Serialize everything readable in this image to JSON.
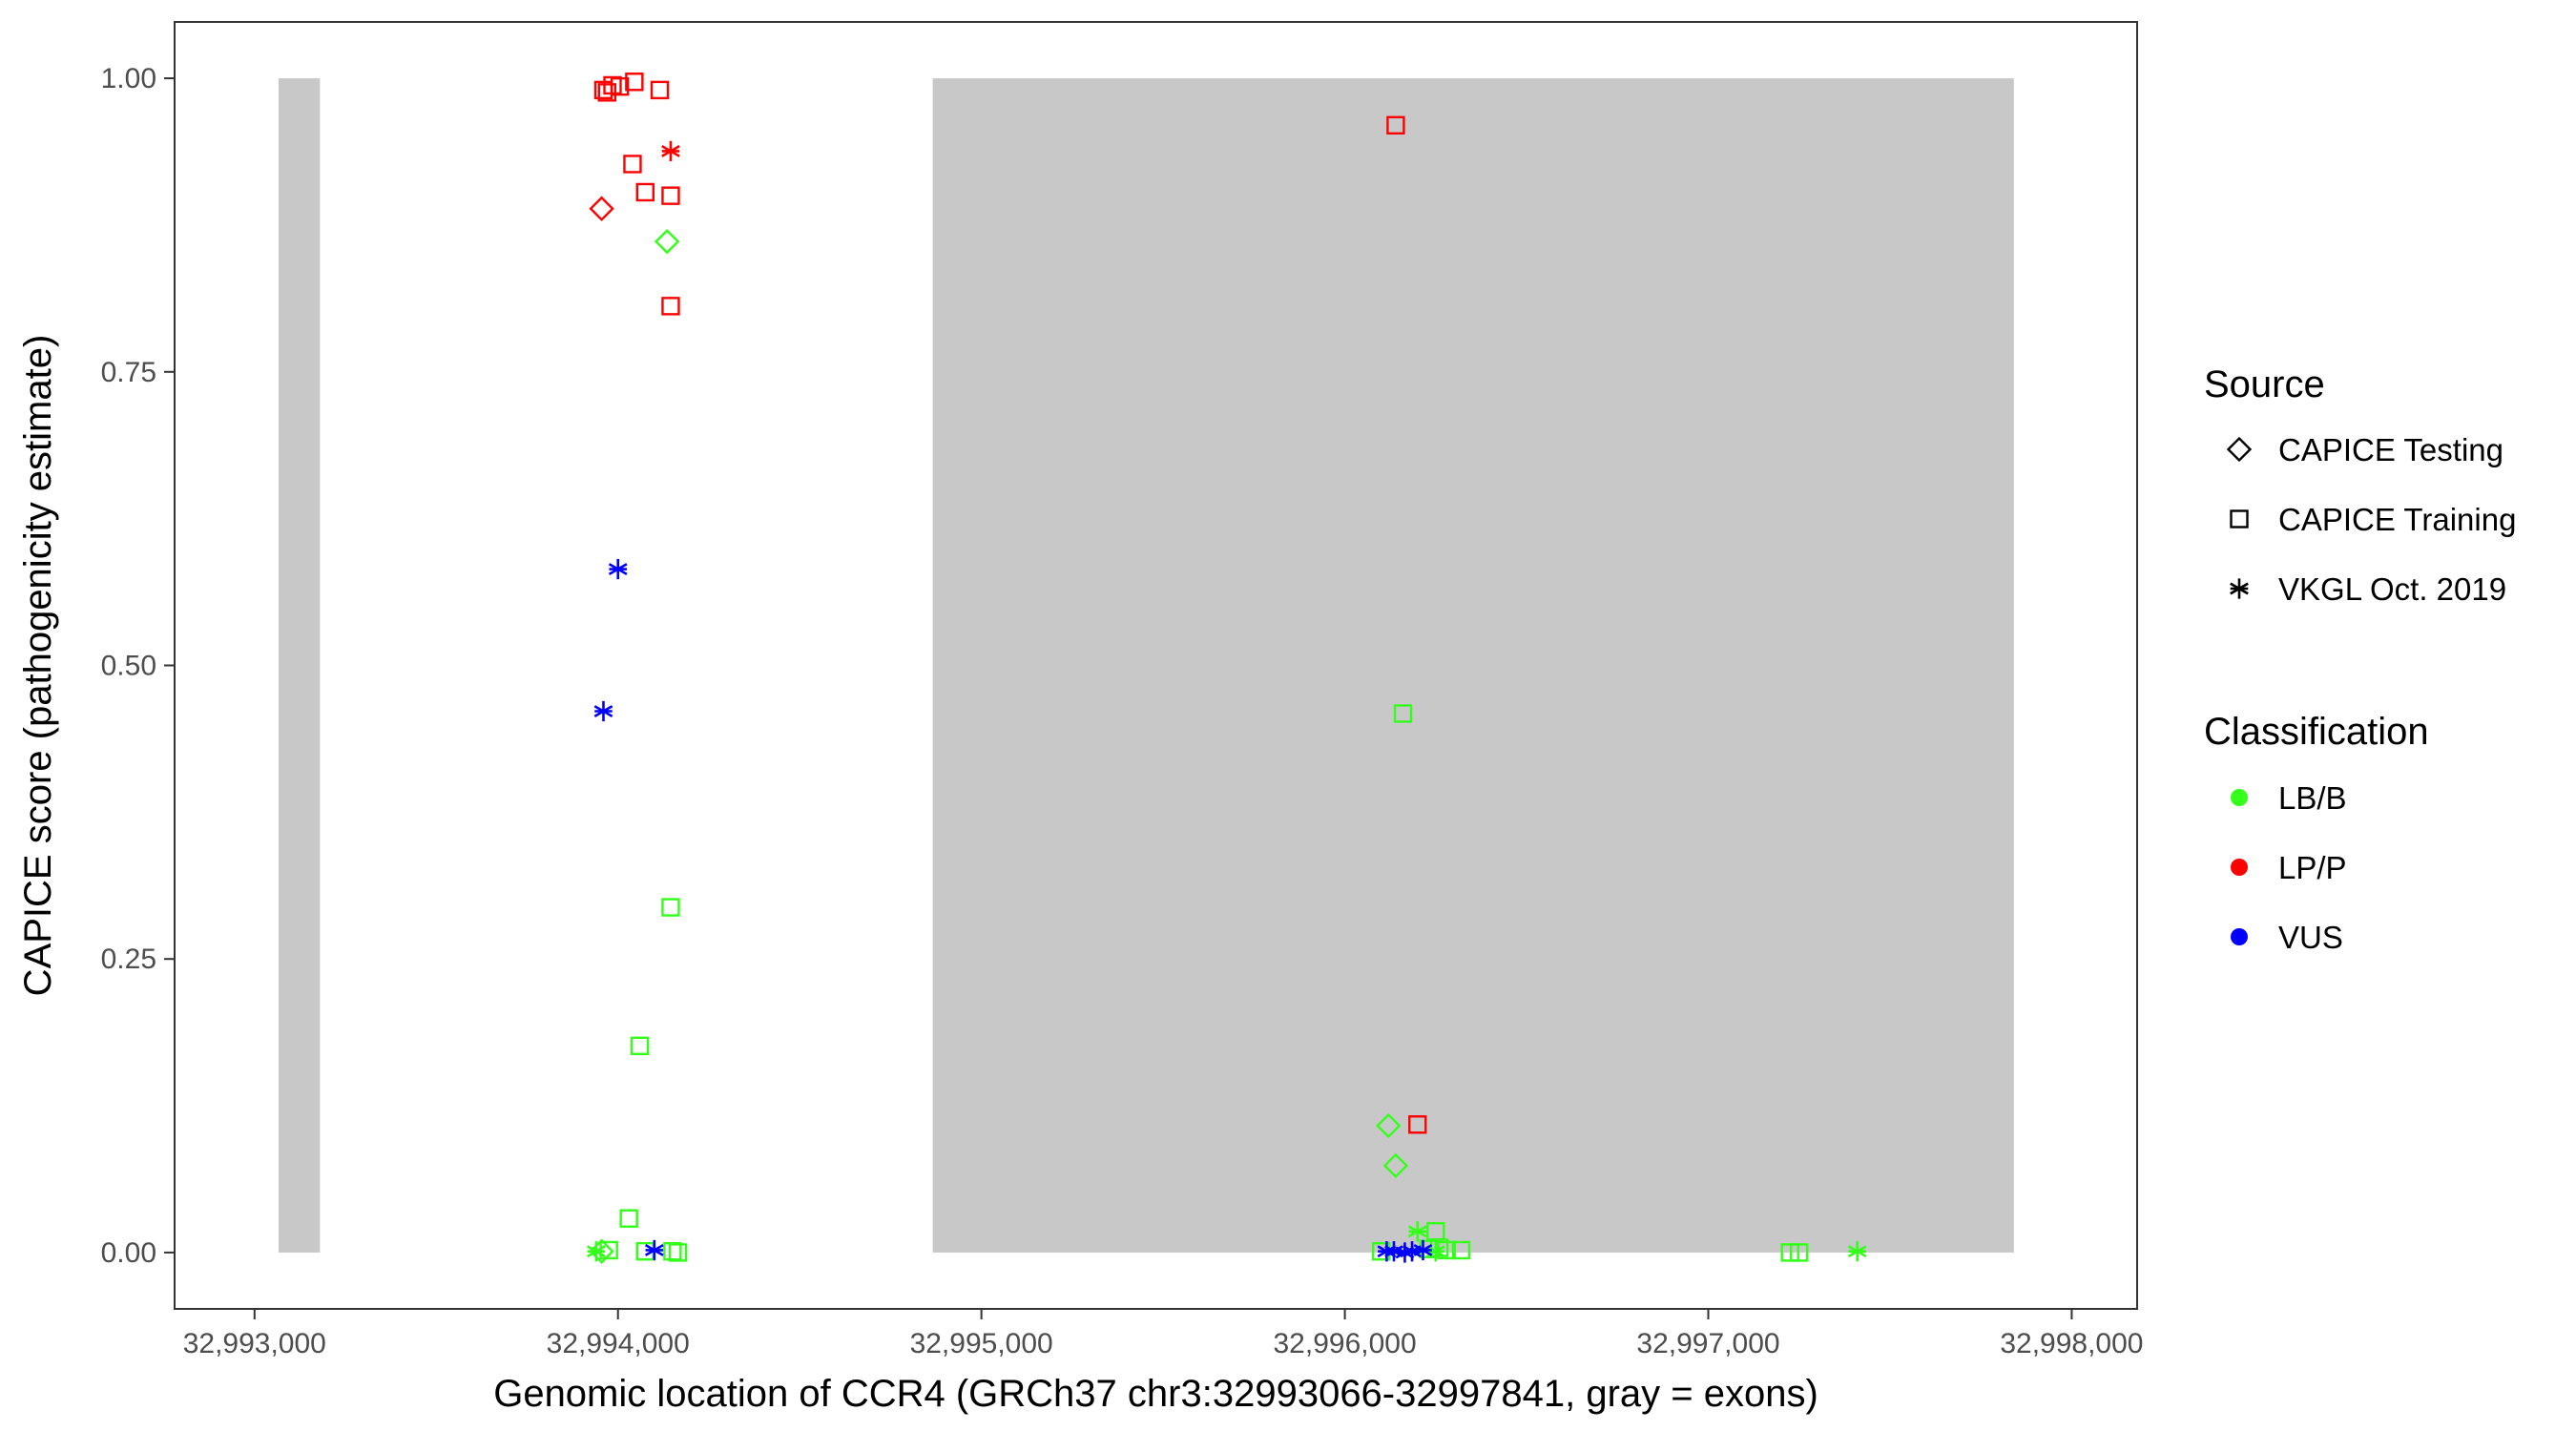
{
  "chart_data": {
    "type": "scatter",
    "xlabel": "Genomic location of CCR4 (GRCh37 chr3:32993066-32997841, gray = exons)",
    "ylabel": "CAPICE score (pathogenicity estimate)",
    "xlim": [
      32992780,
      32998180
    ],
    "ylim": [
      -0.048,
      1.048
    ],
    "x_ticks": [
      32993000,
      32994000,
      32995000,
      32996000,
      32997000,
      32998000
    ],
    "x_tick_labels": [
      "32,993,000",
      "32,994,000",
      "32,995,000",
      "32,996,000",
      "32,997,000",
      "32,998,000"
    ],
    "y_ticks": [
      0,
      0.25,
      0.5,
      0.75,
      1.0
    ],
    "y_tick_labels": [
      "0.00",
      "0.25",
      "0.50",
      "0.75",
      "1.00"
    ],
    "grid": false,
    "exons": [
      {
        "start": 32993066,
        "end": 32993180
      },
      {
        "start": 32994866,
        "end": 32997841
      }
    ],
    "exon_color": "#c8c8c8",
    "legend_placement": "right",
    "legend": {
      "source_title": "Source",
      "source_items": [
        {
          "label": "CAPICE Testing",
          "shape": "diamond"
        },
        {
          "label": "CAPICE Training",
          "shape": "square"
        },
        {
          "label": "VKGL Oct. 2019",
          "shape": "asterisk"
        }
      ],
      "class_title": "Classification",
      "class_items": [
        {
          "label": "LB/B",
          "color": "#33ff1a"
        },
        {
          "label": "LP/P",
          "color": "#ff0000"
        },
        {
          "label": "VUS",
          "color": "#0000ff"
        }
      ]
    },
    "points": [
      {
        "x": 32993960,
        "y": 0.99,
        "source": "CAPICE Training",
        "class": "LP/P"
      },
      {
        "x": 32993970,
        "y": 0.988,
        "source": "CAPICE Training",
        "class": "LP/P"
      },
      {
        "x": 32993985,
        "y": 0.994,
        "source": "CAPICE Training",
        "class": "LP/P"
      },
      {
        "x": 32994005,
        "y": 0.993,
        "source": "CAPICE Training",
        "class": "LP/P"
      },
      {
        "x": 32994045,
        "y": 0.997,
        "source": "CAPICE Training",
        "class": "LP/P"
      },
      {
        "x": 32994115,
        "y": 0.99,
        "source": "CAPICE Training",
        "class": "LP/P"
      },
      {
        "x": 32994145,
        "y": 0.938,
        "source": "VKGL Oct. 2019",
        "class": "LP/P"
      },
      {
        "x": 32994040,
        "y": 0.927,
        "source": "CAPICE Training",
        "class": "LP/P"
      },
      {
        "x": 32994075,
        "y": 0.903,
        "source": "CAPICE Training",
        "class": "LP/P"
      },
      {
        "x": 32994145,
        "y": 0.9,
        "source": "CAPICE Training",
        "class": "LP/P"
      },
      {
        "x": 32993955,
        "y": 0.889,
        "source": "CAPICE Testing",
        "class": "LP/P"
      },
      {
        "x": 32994135,
        "y": 0.861,
        "source": "CAPICE Testing",
        "class": "LB/B"
      },
      {
        "x": 32994145,
        "y": 0.806,
        "source": "CAPICE Training",
        "class": "LP/P"
      },
      {
        "x": 32994000,
        "y": 0.582,
        "source": "VKGL Oct. 2019",
        "class": "VUS"
      },
      {
        "x": 32993960,
        "y": 0.461,
        "source": "VKGL Oct. 2019",
        "class": "VUS"
      },
      {
        "x": 32994145,
        "y": 0.294,
        "source": "CAPICE Training",
        "class": "LB/B"
      },
      {
        "x": 32994060,
        "y": 0.176,
        "source": "CAPICE Training",
        "class": "LB/B"
      },
      {
        "x": 32994030,
        "y": 0.029,
        "source": "CAPICE Training",
        "class": "LB/B"
      },
      {
        "x": 32993940,
        "y": 0.001,
        "source": "VKGL Oct. 2019",
        "class": "LB/B"
      },
      {
        "x": 32993955,
        "y": 0.001,
        "source": "CAPICE Testing",
        "class": "LB/B"
      },
      {
        "x": 32993975,
        "y": 0.002,
        "source": "CAPICE Training",
        "class": "LB/B"
      },
      {
        "x": 32994075,
        "y": 0.001,
        "source": "CAPICE Training",
        "class": "LB/B"
      },
      {
        "x": 32994150,
        "y": 0.001,
        "source": "CAPICE Training",
        "class": "LB/B"
      },
      {
        "x": 32994165,
        "y": 0.0,
        "source": "CAPICE Training",
        "class": "LB/B"
      },
      {
        "x": 32994100,
        "y": 0.002,
        "source": "VKGL Oct. 2019",
        "class": "VUS"
      },
      {
        "x": 32996140,
        "y": 0.96,
        "source": "CAPICE Training",
        "class": "LP/P"
      },
      {
        "x": 32996160,
        "y": 0.459,
        "source": "CAPICE Training",
        "class": "LB/B"
      },
      {
        "x": 32996120,
        "y": 0.108,
        "source": "CAPICE Testing",
        "class": "LB/B"
      },
      {
        "x": 32996200,
        "y": 0.109,
        "source": "CAPICE Training",
        "class": "LP/P"
      },
      {
        "x": 32996140,
        "y": 0.074,
        "source": "CAPICE Testing",
        "class": "LB/B"
      },
      {
        "x": 32996200,
        "y": 0.018,
        "source": "VKGL Oct. 2019",
        "class": "LB/B"
      },
      {
        "x": 32996250,
        "y": 0.018,
        "source": "CAPICE Training",
        "class": "LB/B"
      },
      {
        "x": 32996100,
        "y": 0.001,
        "source": "CAPICE Training",
        "class": "LB/B"
      },
      {
        "x": 32996230,
        "y": 0.003,
        "source": "CAPICE Training",
        "class": "LB/B"
      },
      {
        "x": 32996260,
        "y": 0.004,
        "source": "CAPICE Training",
        "class": "LB/B"
      },
      {
        "x": 32996280,
        "y": 0.002,
        "source": "CAPICE Training",
        "class": "LB/B"
      },
      {
        "x": 32996320,
        "y": 0.002,
        "source": "CAPICE Training",
        "class": "LB/B"
      },
      {
        "x": 32996250,
        "y": 0.001,
        "source": "VKGL Oct. 2019",
        "class": "LB/B"
      },
      {
        "x": 32996115,
        "y": 0.001,
        "source": "VKGL Oct. 2019",
        "class": "VUS"
      },
      {
        "x": 32996135,
        "y": 0.001,
        "source": "VKGL Oct. 2019",
        "class": "VUS"
      },
      {
        "x": 32996165,
        "y": 0.0,
        "source": "VKGL Oct. 2019",
        "class": "VUS"
      },
      {
        "x": 32996185,
        "y": 0.001,
        "source": "VKGL Oct. 2019",
        "class": "VUS"
      },
      {
        "x": 32996215,
        "y": 0.002,
        "source": "VKGL Oct. 2019",
        "class": "VUS"
      },
      {
        "x": 32997225,
        "y": 0.0,
        "source": "CAPICE Training",
        "class": "LB/B"
      },
      {
        "x": 32997250,
        "y": 0.0,
        "source": "CAPICE Training",
        "class": "LB/B"
      },
      {
        "x": 32997410,
        "y": 0.001,
        "source": "VKGL Oct. 2019",
        "class": "LB/B"
      }
    ]
  }
}
